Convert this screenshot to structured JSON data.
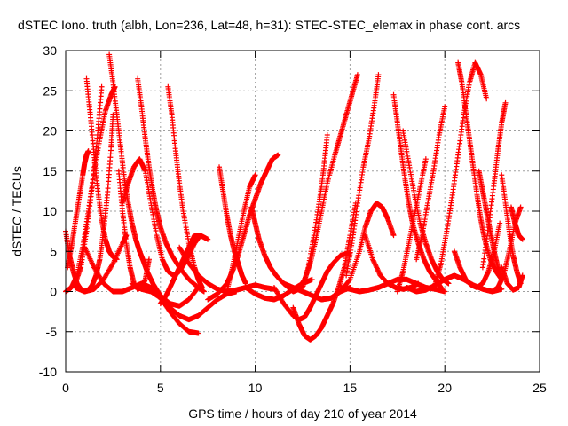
{
  "chart_data": {
    "type": "scatter",
    "title": "dSTEC Iono. truth (albh, Lon=236, Lat=48, h=31): STEC-STEC_elemax in phase cont. arcs",
    "xlabel": "GPS time / hours of day 210 of year 2014",
    "ylabel": "dSTEC  / TECUs",
    "xlim": [
      0,
      25
    ],
    "ylim": [
      -10,
      30
    ],
    "x_ticks": [
      0,
      5,
      10,
      15,
      20,
      25
    ],
    "y_ticks": [
      -10,
      -5,
      0,
      5,
      10,
      15,
      20,
      25,
      30
    ],
    "grid": true,
    "legend": "none",
    "marker": "+",
    "color": "#ff0000",
    "series": [
      {
        "x": [
          0.0,
          0.2,
          0.4,
          0.6,
          0.8,
          1.0,
          1.2,
          1.4,
          1.6,
          1.8,
          2.0,
          2.2,
          2.4,
          2.5
        ],
        "y": [
          7.5,
          4.5,
          2.5,
          1.0,
          0.3,
          0.0,
          0.2,
          0.8,
          2.0,
          4.0,
          7.5,
          12.0,
          18.0,
          22.0
        ]
      },
      {
        "x": [
          0.0,
          0.3,
          0.6,
          0.9,
          1.2,
          1.5,
          1.8,
          2.1,
          2.4,
          2.6
        ],
        "y": [
          0.0,
          0.5,
          2.0,
          5.5,
          10.0,
          15.0,
          19.0,
          22.5,
          24.5,
          25.5
        ]
      },
      {
        "x": [
          0.1,
          0.3,
          0.5,
          0.7,
          0.9,
          1.0,
          1.1,
          1.2
        ],
        "y": [
          3.0,
          5.5,
          8.5,
          11.5,
          14.5,
          16.0,
          17.0,
          17.5
        ]
      },
      {
        "x": [
          1.1,
          1.3,
          1.5,
          1.7,
          1.9,
          2.1,
          2.3,
          2.5,
          2.7
        ],
        "y": [
          26.5,
          22.0,
          17.0,
          12.5,
          9.0,
          6.5,
          5.0,
          4.3,
          4.0
        ]
      },
      {
        "x": [
          0.2,
          0.5,
          0.8,
          1.1,
          1.4,
          1.7,
          1.9
        ],
        "y": [
          0.3,
          1.0,
          3.0,
          7.5,
          13.0,
          20.0,
          25.5
        ]
      },
      {
        "x": [
          2.3,
          2.5,
          2.7,
          2.9,
          3.1,
          3.3,
          3.5,
          3.7,
          3.9,
          4.1,
          4.3,
          4.6,
          5.0,
          5.5,
          6.0,
          6.5,
          7.0
        ],
        "y": [
          29.5,
          26.0,
          22.0,
          18.0,
          14.0,
          11.0,
          8.5,
          6.5,
          5.0,
          3.8,
          2.5,
          1.0,
          -0.5,
          -1.5,
          -1.8,
          -1.0,
          0.5
        ]
      },
      {
        "x": [
          0.5,
          1.0,
          1.5,
          2.0,
          2.5,
          3.0,
          3.2
        ],
        "y": [
          0.5,
          0.0,
          0.3,
          1.5,
          3.5,
          6.0,
          7.0
        ]
      },
      {
        "x": [
          3.8,
          4.0,
          4.2,
          4.4,
          4.6,
          4.8,
          5.0,
          5.3,
          5.6,
          6.0,
          6.5,
          7.0,
          7.3
        ],
        "y": [
          26.5,
          23.0,
          19.0,
          15.5,
          12.5,
          10.0,
          8.0,
          6.0,
          4.5,
          3.0,
          1.5,
          0.5,
          0.0
        ]
      },
      {
        "x": [
          2.8,
          3.0,
          3.2,
          3.4,
          3.6,
          3.8,
          4.0,
          4.2,
          4.4
        ],
        "y": [
          15.0,
          10.0,
          6.0,
          3.0,
          1.0,
          0.3,
          0.5,
          1.5,
          4.0
        ]
      },
      {
        "x": [
          3.0,
          3.3,
          3.6,
          3.9,
          4.2,
          4.5,
          4.8,
          5.1,
          5.4,
          5.7,
          6.0,
          6.4,
          6.8,
          7.1
        ],
        "y": [
          11.0,
          13.5,
          15.5,
          16.5,
          15.0,
          11.0,
          7.0,
          4.0,
          2.5,
          2.0,
          2.5,
          4.0,
          6.0,
          7.0
        ]
      },
      {
        "x": [
          1.0,
          1.5,
          2.0,
          2.5,
          3.0,
          3.5,
          4.0,
          4.5,
          5.0,
          5.5,
          6.0,
          6.5,
          7.0
        ],
        "y": [
          5.5,
          3.0,
          1.0,
          0.0,
          0.0,
          0.5,
          1.0,
          0.5,
          -0.8,
          -2.5,
          -4.0,
          -5.0,
          -5.2
        ]
      },
      {
        "x": [
          5.4,
          5.6,
          5.8,
          6.0,
          6.2,
          6.5,
          6.8,
          7.0,
          7.2
        ],
        "y": [
          25.5,
          22.0,
          17.5,
          13.5,
          10.0,
          6.0,
          3.0,
          1.5,
          0.5
        ]
      },
      {
        "x": [
          3.5,
          4.0,
          4.5,
          5.0,
          5.5,
          6.0,
          6.5,
          7.0,
          7.5,
          8.0,
          8.5,
          9.0
        ],
        "y": [
          1.0,
          0.3,
          0.0,
          -0.8,
          -2.0,
          -3.0,
          -3.5,
          -3.0,
          -2.0,
          -1.0,
          -0.3,
          0.0
        ]
      },
      {
        "x": [
          5.0,
          5.3,
          5.6,
          5.9,
          6.2,
          6.5,
          6.8,
          7.1,
          7.5
        ],
        "y": [
          -1.5,
          -0.5,
          1.0,
          2.5,
          4.0,
          5.5,
          7.0,
          7.0,
          6.5
        ]
      },
      {
        "x": [
          6.0,
          6.5,
          7.0,
          7.5,
          8.0,
          8.5,
          9.0,
          9.5,
          10.0,
          10.5,
          11.0
        ],
        "y": [
          5.5,
          3.5,
          2.0,
          1.0,
          0.3,
          0.0,
          0.2,
          0.5,
          0.8,
          0.5,
          0.3
        ]
      },
      {
        "x": [
          8.1,
          8.3,
          8.5,
          8.7,
          8.9,
          9.1,
          9.3,
          9.5
        ],
        "y": [
          15.5,
          12.5,
          9.5,
          7.0,
          5.0,
          3.5,
          2.0,
          1.0
        ]
      },
      {
        "x": [
          7.5,
          8.0,
          8.5,
          8.8,
          9.1,
          9.4,
          9.7,
          10.0,
          10.3,
          10.6,
          10.9,
          11.2
        ],
        "y": [
          -1.0,
          -0.3,
          1.0,
          2.5,
          4.5,
          7.0,
          9.5,
          11.5,
          13.5,
          15.0,
          16.5,
          17.0
        ]
      },
      {
        "x": [
          8.5,
          8.8,
          9.1,
          9.4,
          9.7,
          10.0
        ],
        "y": [
          0.0,
          3.0,
          6.5,
          10.0,
          13.0,
          14.5
        ]
      },
      {
        "x": [
          9.8,
          10.0,
          10.2,
          10.5,
          10.8,
          11.1,
          11.5,
          12.0,
          12.5,
          13.0,
          13.5,
          14.0,
          14.5,
          15.0
        ],
        "y": [
          10.5,
          8.5,
          6.5,
          4.5,
          3.0,
          2.0,
          1.0,
          0.5,
          0.0,
          -0.5,
          -1.0,
          -0.8,
          0.0,
          0.5
        ]
      },
      {
        "x": [
          9.5,
          10.0,
          10.5,
          11.0,
          11.5,
          12.0,
          12.5,
          13.0
        ],
        "y": [
          0.5,
          -0.3,
          -0.8,
          -1.0,
          -0.5,
          0.3,
          1.0,
          1.5
        ]
      },
      {
        "x": [
          11.0,
          11.5,
          12.0,
          12.3,
          12.6,
          12.9,
          13.2,
          13.5,
          13.8,
          14.1,
          14.5,
          15.0
        ],
        "y": [
          0.5,
          -1.5,
          -3.0,
          -3.5,
          -3.2,
          -2.0,
          -0.5,
          1.0,
          2.5,
          3.5,
          4.5,
          4.8
        ]
      },
      {
        "x": [
          12.0,
          12.3,
          12.6,
          12.9,
          13.2,
          13.5,
          13.8,
          14.1,
          14.4,
          14.7,
          15.0,
          15.3
        ],
        "y": [
          -2.0,
          -4.0,
          -5.5,
          -6.0,
          -5.5,
          -4.5,
          -3.0,
          -1.5,
          0.5,
          3.0,
          7.0,
          11.0
        ]
      },
      {
        "x": [
          11.5,
          12.0,
          12.3,
          12.6,
          12.9,
          13.2,
          13.5,
          13.8,
          14.2,
          14.5,
          14.8,
          15.1,
          15.4
        ],
        "y": [
          1.0,
          0.0,
          0.3,
          1.5,
          3.5,
          6.5,
          10.0,
          13.5,
          17.0,
          19.5,
          22.0,
          24.5,
          27.0
        ]
      },
      {
        "x": [
          12.5,
          12.8,
          13.1,
          13.4,
          13.6,
          13.8
        ],
        "y": [
          0.5,
          3.0,
          7.0,
          11.5,
          15.0,
          19.5
        ]
      },
      {
        "x": [
          14.5,
          15.0,
          15.5,
          16.0,
          16.5,
          17.0,
          17.5,
          18.0,
          18.5,
          19.0,
          19.5,
          20.0
        ],
        "y": [
          0.5,
          0.3,
          0.0,
          0.2,
          0.5,
          1.0,
          1.5,
          1.5,
          1.0,
          0.5,
          0.3,
          0.0
        ]
      },
      {
        "x": [
          14.8,
          15.1,
          15.4,
          15.7,
          16.0,
          16.3,
          16.5
        ],
        "y": [
          2.0,
          6.0,
          11.0,
          15.5,
          19.0,
          23.5,
          27.0
        ]
      },
      {
        "x": [
          13.5,
          14.0,
          14.5,
          15.0,
          15.5,
          15.8,
          16.1,
          16.4,
          16.7,
          17.0,
          17.3
        ],
        "y": [
          -1.0,
          -0.8,
          0.0,
          1.5,
          5.0,
          8.0,
          10.0,
          11.0,
          10.5,
          9.0,
          7.0
        ]
      },
      {
        "x": [
          15.8,
          16.2,
          16.6,
          17.0,
          17.4,
          17.8,
          18.2,
          18.6
        ],
        "y": [
          7.0,
          4.0,
          2.0,
          1.0,
          0.5,
          0.3,
          0.5,
          1.0
        ]
      },
      {
        "x": [
          17.3,
          17.5,
          17.7,
          17.9,
          18.1,
          18.3,
          18.6,
          18.9,
          19.2,
          19.5,
          19.8
        ],
        "y": [
          24.5,
          21.0,
          17.5,
          14.0,
          11.0,
          8.5,
          6.0,
          4.0,
          2.5,
          1.5,
          0.5
        ]
      },
      {
        "x": [
          17.5,
          17.8,
          18.1,
          18.4,
          18.7,
          19.0
        ],
        "y": [
          0.0,
          2.5,
          6.0,
          9.5,
          13.0,
          16.5
        ]
      },
      {
        "x": [
          17.8,
          18.1,
          18.4,
          18.7,
          19.0,
          19.3,
          19.6,
          19.9,
          20.2
        ],
        "y": [
          20.0,
          16.0,
          12.0,
          8.5,
          6.0,
          4.0,
          2.5,
          1.5,
          1.0
        ]
      },
      {
        "x": [
          18.5,
          18.8,
          19.1,
          19.4,
          19.7,
          20.0
        ],
        "y": [
          4.0,
          7.0,
          11.0,
          15.0,
          19.5,
          23.0
        ]
      },
      {
        "x": [
          18.0,
          18.5,
          19.0,
          19.5,
          20.0,
          20.5,
          21.0,
          21.5,
          22.0,
          22.5,
          23.0
        ],
        "y": [
          0.5,
          0.0,
          0.2,
          0.8,
          1.5,
          2.0,
          1.5,
          0.8,
          0.3,
          0.0,
          0.3
        ]
      },
      {
        "x": [
          19.5,
          19.8,
          20.1,
          20.4,
          20.7,
          21.0,
          21.3,
          21.6,
          21.9,
          22.2
        ],
        "y": [
          1.0,
          3.5,
          7.5,
          12.0,
          17.0,
          22.0,
          26.0,
          28.5,
          27.0,
          24.0
        ]
      },
      {
        "x": [
          20.7,
          20.9,
          21.1,
          21.3,
          21.5,
          21.7,
          21.9,
          22.1,
          22.4,
          22.7,
          23.0
        ],
        "y": [
          28.5,
          26.0,
          22.5,
          19.0,
          15.5,
          12.0,
          9.0,
          6.5,
          4.0,
          2.5,
          1.5
        ]
      },
      {
        "x": [
          20.5,
          20.8,
          21.1,
          21.4,
          21.7,
          22.0,
          22.3,
          22.6,
          22.9
        ],
        "y": [
          5.0,
          3.0,
          1.5,
          0.8,
          0.5,
          1.0,
          2.5,
          5.0,
          8.5
        ]
      },
      {
        "x": [
          21.8,
          22.0,
          22.2,
          22.4,
          22.6,
          22.8,
          23.0
        ],
        "y": [
          15.0,
          12.5,
          10.0,
          7.5,
          5.0,
          3.0,
          1.5
        ]
      },
      {
        "x": [
          22.0,
          22.3,
          22.6,
          22.8,
          23.0,
          23.2
        ],
        "y": [
          3.0,
          8.0,
          13.5,
          17.5,
          21.0,
          23.5
        ]
      },
      {
        "x": [
          23.0,
          23.2,
          23.4,
          23.6,
          23.8,
          24.0
        ],
        "y": [
          14.5,
          11.0,
          7.5,
          4.5,
          2.5,
          1.0
        ]
      },
      {
        "x": [
          22.5,
          22.8,
          23.1,
          23.4,
          23.7,
          24.0
        ],
        "y": [
          0.0,
          0.5,
          2.0,
          5.0,
          8.5,
          10.5
        ]
      },
      {
        "x": [
          23.0,
          23.3,
          23.6,
          23.9,
          24.1
        ],
        "y": [
          3.0,
          1.0,
          0.2,
          0.5,
          2.0
        ]
      },
      {
        "x": [
          23.5,
          23.7,
          23.9,
          24.1
        ],
        "y": [
          10.5,
          8.5,
          7.0,
          6.5
        ]
      }
    ]
  }
}
